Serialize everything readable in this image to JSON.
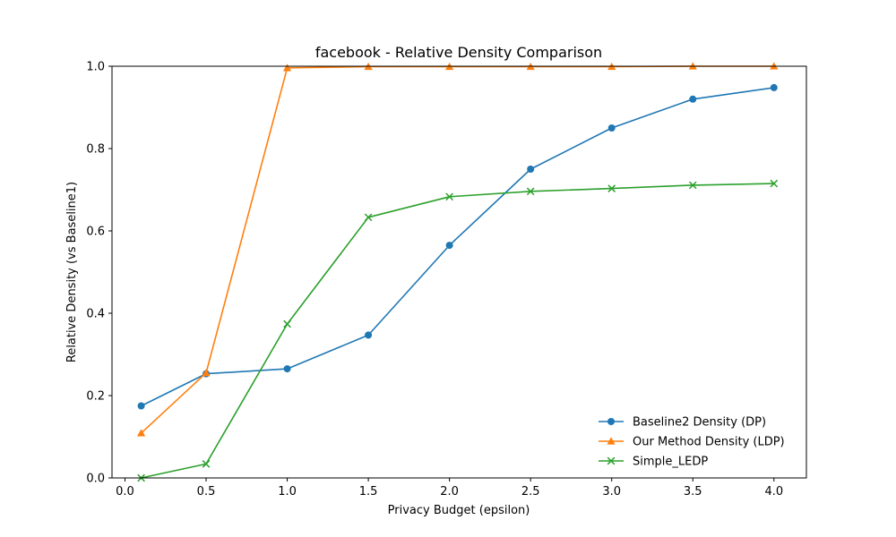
{
  "chart_data": {
    "type": "line",
    "title": "facebook - Relative Density Comparison",
    "xlabel": "Privacy Budget (epsilon)",
    "ylabel": "Relative Density (vs Baseline1)",
    "xlim": [
      -0.08,
      4.2
    ],
    "ylim": [
      0,
      1.0
    ],
    "xticks": [
      0.0,
      0.5,
      1.0,
      1.5,
      2.0,
      2.5,
      3.0,
      3.5,
      4.0
    ],
    "xtick_labels": [
      "0.0",
      "0.5",
      "1.0",
      "1.5",
      "2.0",
      "2.5",
      "3.0",
      "3.5",
      "4.0"
    ],
    "yticks": [
      0.0,
      0.2,
      0.4,
      0.6,
      0.8,
      1.0
    ],
    "ytick_labels": [
      "0.0",
      "0.2",
      "0.4",
      "0.6",
      "0.8",
      "1.0"
    ],
    "grid": false,
    "legend_position": "lower-right",
    "x": [
      0.1,
      0.5,
      1.0,
      1.5,
      2.0,
      2.5,
      3.0,
      3.5,
      4.0
    ],
    "series": [
      {
        "name": "Baseline2 Density (DP)",
        "color": "#1f77b4",
        "marker": "circle",
        "values": [
          0.175,
          0.253,
          0.265,
          0.347,
          0.565,
          0.75,
          0.85,
          0.92,
          0.948
        ]
      },
      {
        "name": "Our Method Density (LDP)",
        "color": "#ff7f0e",
        "marker": "triangle",
        "values": [
          0.109,
          0.255,
          0.996,
          0.999,
          0.999,
          0.999,
          0.999,
          1.0,
          1.0
        ]
      },
      {
        "name": "Simple_LEDP",
        "color": "#2ca02c",
        "marker": "x",
        "values": [
          0.0,
          0.034,
          0.374,
          0.633,
          0.683,
          0.696,
          0.703,
          0.711,
          0.715
        ]
      }
    ]
  }
}
